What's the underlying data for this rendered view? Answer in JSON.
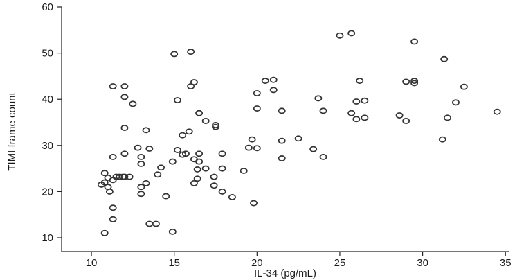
{
  "chart_data": {
    "type": "scatter",
    "xlabel": "IL-34 (pg/mL)",
    "ylabel": "TIMI frame count",
    "xlim": [
      8.2,
      35.2
    ],
    "ylim": [
      7,
      60
    ],
    "x_ticks": [
      10,
      15,
      20,
      25,
      30,
      35
    ],
    "y_ticks": [
      10,
      20,
      30,
      40,
      50,
      60
    ],
    "x_tick_labels": [
      "10",
      "15",
      "20",
      "25",
      "30",
      "35"
    ],
    "y_tick_labels": [
      "10",
      "20",
      "30",
      "40",
      "50",
      "60"
    ],
    "grid": false,
    "legend": "none",
    "marker_color": "#333333",
    "points": [
      [
        10.8,
        11
      ],
      [
        11.0,
        21
      ],
      [
        10.6,
        21.5
      ],
      [
        10.8,
        22
      ],
      [
        10.8,
        24
      ],
      [
        11.0,
        23
      ],
      [
        11.1,
        20
      ],
      [
        11.3,
        14
      ],
      [
        11.3,
        16.5
      ],
      [
        11.3,
        22.5
      ],
      [
        11.3,
        27.5
      ],
      [
        11.3,
        42.8
      ],
      [
        11.5,
        23.2
      ],
      [
        11.7,
        23.2
      ],
      [
        11.9,
        23.2
      ],
      [
        12.0,
        23.2
      ],
      [
        12.0,
        28.2
      ],
      [
        12.0,
        33.8
      ],
      [
        12.0,
        40.5
      ],
      [
        12.0,
        42.8
      ],
      [
        12.3,
        23.2
      ],
      [
        12.5,
        39
      ],
      [
        12.8,
        29.5
      ],
      [
        13.0,
        19.5
      ],
      [
        13.0,
        21
      ],
      [
        13.0,
        26
      ],
      [
        13.0,
        27.5
      ],
      [
        13.3,
        21.8
      ],
      [
        13.3,
        33.3
      ],
      [
        13.5,
        13
      ],
      [
        13.5,
        29.3
      ],
      [
        13.9,
        13
      ],
      [
        14.0,
        23.7
      ],
      [
        14.2,
        25.2
      ],
      [
        14.5,
        19
      ],
      [
        14.9,
        11.3
      ],
      [
        14.9,
        26.5
      ],
      [
        15.0,
        49.8
      ],
      [
        15.2,
        29
      ],
      [
        15.2,
        39.8
      ],
      [
        15.5,
        28
      ],
      [
        15.5,
        32.2
      ],
      [
        15.7,
        28.2
      ],
      [
        15.9,
        33
      ],
      [
        16.0,
        42.8
      ],
      [
        16.0,
        50.3
      ],
      [
        16.2,
        21.8
      ],
      [
        16.2,
        27
      ],
      [
        16.2,
        43.7
      ],
      [
        16.4,
        22.8
      ],
      [
        16.4,
        24.8
      ],
      [
        16.5,
        26.5
      ],
      [
        16.5,
        28.2
      ],
      [
        16.5,
        37
      ],
      [
        16.9,
        25
      ],
      [
        16.9,
        35.3
      ],
      [
        17.4,
        21.3
      ],
      [
        17.4,
        23.2
      ],
      [
        17.5,
        34
      ],
      [
        17.5,
        34.4
      ],
      [
        17.9,
        20
      ],
      [
        17.9,
        25
      ],
      [
        17.9,
        28.2
      ],
      [
        18.5,
        18.8
      ],
      [
        19.2,
        24.5
      ],
      [
        19.5,
        29.5
      ],
      [
        19.7,
        31.3
      ],
      [
        19.8,
        17.5
      ],
      [
        20.0,
        29.4
      ],
      [
        20.0,
        38
      ],
      [
        20.0,
        41.3
      ],
      [
        20.5,
        44
      ],
      [
        21.0,
        42
      ],
      [
        21.0,
        44.2
      ],
      [
        21.5,
        27.2
      ],
      [
        21.5,
        31
      ],
      [
        21.5,
        37.5
      ],
      [
        22.5,
        31.5
      ],
      [
        23.4,
        29.2
      ],
      [
        23.7,
        40.2
      ],
      [
        24.0,
        27.5
      ],
      [
        24.0,
        37.5
      ],
      [
        25.0,
        53.8
      ],
      [
        25.7,
        37
      ],
      [
        25.7,
        54.3
      ],
      [
        26.0,
        35.7
      ],
      [
        26.0,
        39.5
      ],
      [
        26.2,
        44
      ],
      [
        26.5,
        36
      ],
      [
        26.5,
        39.7
      ],
      [
        28.6,
        36.5
      ],
      [
        29.0,
        35.3
      ],
      [
        29.0,
        43.8
      ],
      [
        29.5,
        43.5
      ],
      [
        29.5,
        44
      ],
      [
        29.5,
        52.5
      ],
      [
        31.2,
        31.3
      ],
      [
        31.3,
        48.7
      ],
      [
        31.5,
        36
      ],
      [
        32.0,
        39.3
      ],
      [
        32.5,
        42.7
      ],
      [
        34.5,
        37.3
      ]
    ]
  }
}
